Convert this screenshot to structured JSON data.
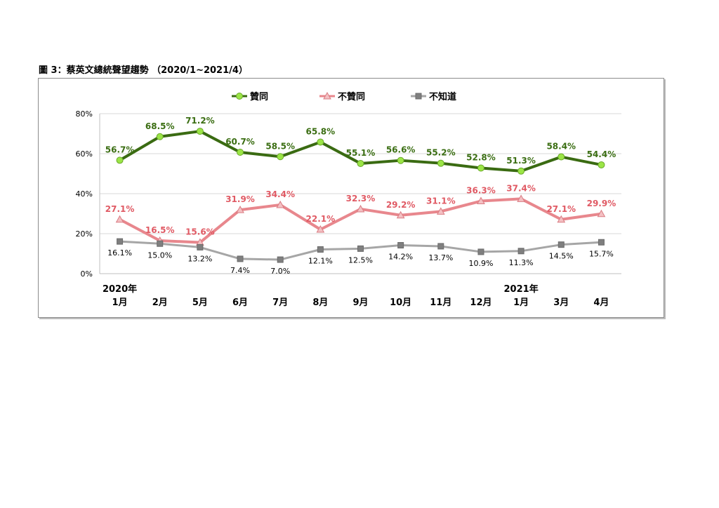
{
  "caption": "圖 3：蔡英文總統聲望趨勢 （2020/1~2021/4）",
  "chart_data": {
    "type": "line",
    "categories": [
      "1月",
      "2月",
      "5月",
      "6月",
      "7月",
      "8月",
      "9月",
      "10月",
      "11月",
      "12月",
      "1月",
      "3月",
      "4月"
    ],
    "year_labels": [
      {
        "index": 0,
        "text": "2020年"
      },
      {
        "index": 10,
        "text": "2021年"
      }
    ],
    "y_ticks": [
      "0%",
      "20%",
      "40%",
      "60%",
      "80%"
    ],
    "ylim": [
      0,
      80
    ],
    "grid": true,
    "legend_position": "top",
    "series": [
      {
        "name": "贊同",
        "color": "#3a6b12",
        "marker": "circle",
        "marker_fill": "#9be546",
        "values": [
          56.7,
          68.5,
          71.2,
          60.7,
          58.5,
          65.8,
          55.1,
          56.6,
          55.2,
          52.8,
          51.3,
          58.4,
          54.4
        ],
        "labels": [
          "56.7%",
          "68.5%",
          "71.2%",
          "60.7%",
          "58.5%",
          "65.8%",
          "55.1%",
          "56.6%",
          "55.2%",
          "52.8%",
          "51.3%",
          "58.4%",
          "54.4%"
        ]
      },
      {
        "name": "不贊同",
        "color": "#e8878d",
        "marker": "triangle",
        "marker_fill": "#f4c0c3",
        "values": [
          27.1,
          16.5,
          15.6,
          31.9,
          34.4,
          22.1,
          32.3,
          29.2,
          31.1,
          36.3,
          37.4,
          27.1,
          29.9
        ],
        "labels": [
          "27.1%",
          "16.5%",
          "15.6%",
          "31.9%",
          "34.4%",
          "22.1%",
          "32.3%",
          "29.2%",
          "31.1%",
          "36.3%",
          "37.4%",
          "27.1%",
          "29.9%"
        ]
      },
      {
        "name": "不知道",
        "color": "#a6a6a6",
        "marker": "square",
        "marker_fill": "#7f7f7f",
        "values": [
          16.1,
          15.0,
          13.2,
          7.4,
          7.0,
          12.1,
          12.5,
          14.2,
          13.7,
          10.9,
          11.3,
          14.5,
          15.7
        ],
        "labels": [
          "16.1%",
          "15.0%",
          "13.2%",
          "7.4%",
          "7.0%",
          "12.1%",
          "12.5%",
          "14.2%",
          "13.7%",
          "10.9%",
          "11.3%",
          "14.5%",
          "15.7%"
        ]
      }
    ]
  }
}
